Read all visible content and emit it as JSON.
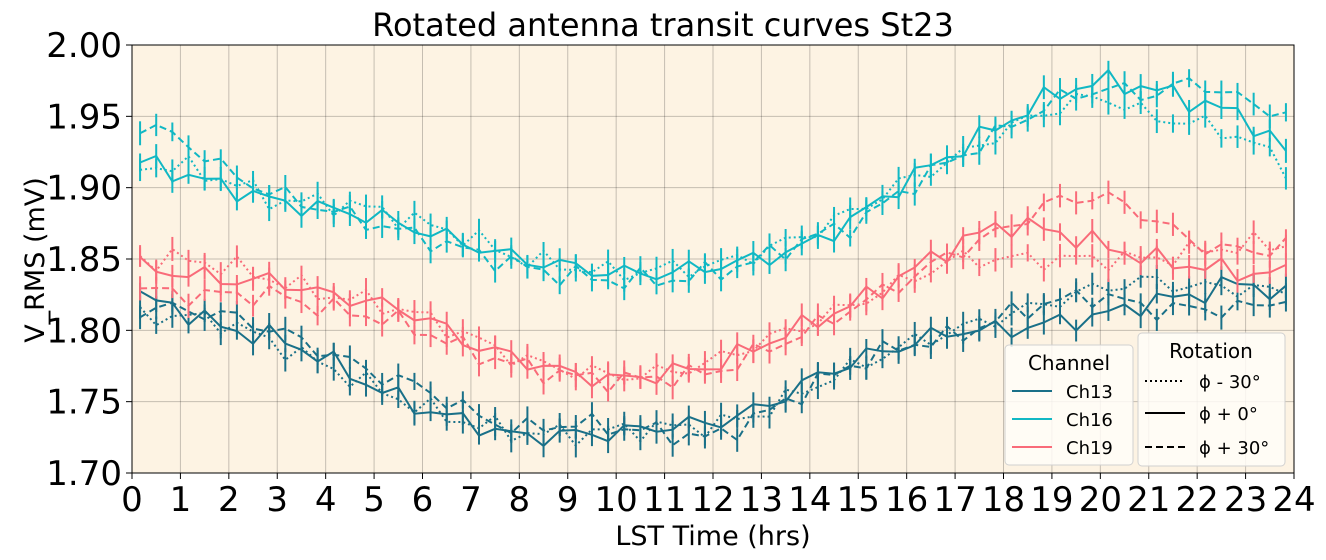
{
  "chart_data": {
    "type": "line",
    "title": "Rotated antenna transit curves St23",
    "xlabel": "LST Time (hrs)",
    "ylabel": "V_RMS (mV)",
    "xlim": [
      0,
      24
    ],
    "ylim": [
      1.7,
      2.0
    ],
    "x_ticks": [
      "0",
      "1",
      "2",
      "3",
      "4",
      "5",
      "6",
      "7",
      "8",
      "9",
      "10",
      "11",
      "12",
      "13",
      "14",
      "15",
      "16",
      "17",
      "18",
      "19",
      "20",
      "21",
      "22",
      "23",
      "24"
    ],
    "y_ticks": [
      "1.70",
      "1.75",
      "1.80",
      "1.85",
      "1.90",
      "1.95",
      "2.00"
    ],
    "grid": true,
    "background": "#fdf3e3",
    "error_bars": true,
    "legend_channel": {
      "title": "Channel",
      "placement": "lower-right",
      "entries": [
        {
          "label": "Ch13",
          "color": "#1a7088"
        },
        {
          "label": "Ch16",
          "color": "#11b8c4"
        },
        {
          "label": "Ch19",
          "color": "#f96b79"
        }
      ]
    },
    "legend_rotation": {
      "title": "Rotation",
      "placement": "lower-right",
      "entries": [
        {
          "label": "ϕ - 30°",
          "style": "dotted"
        },
        {
          "label": "ϕ + 0°",
          "style": "solid"
        },
        {
          "label": "ϕ + 30°",
          "style": "dashed"
        }
      ]
    },
    "x_knots": [
      0,
      1,
      2,
      3,
      4,
      5,
      6,
      7,
      8,
      9,
      10,
      11,
      12,
      13,
      14,
      15,
      16,
      17,
      18,
      19,
      20,
      21,
      22,
      23,
      24
    ],
    "series": [
      {
        "name": "Ch13",
        "rotation": "ϕ + 0°",
        "color": "#1a7088",
        "style": "solid",
        "y": [
          1.825,
          1.815,
          1.8,
          1.795,
          1.78,
          1.76,
          1.745,
          1.735,
          1.725,
          1.727,
          1.728,
          1.733,
          1.735,
          1.745,
          1.765,
          1.78,
          1.79,
          1.8,
          1.8,
          1.805,
          1.81,
          1.82,
          1.825,
          1.835,
          1.82
        ]
      },
      {
        "name": "Ch13",
        "rotation": "ϕ - 30°",
        "color": "#1a7088",
        "style": "dotted",
        "y": [
          1.81,
          1.81,
          1.805,
          1.79,
          1.775,
          1.76,
          1.745,
          1.735,
          1.728,
          1.727,
          1.73,
          1.732,
          1.733,
          1.742,
          1.76,
          1.775,
          1.79,
          1.8,
          1.81,
          1.82,
          1.83,
          1.835,
          1.83,
          1.83,
          1.825
        ]
      },
      {
        "name": "Ch13",
        "rotation": "ϕ + 30°",
        "color": "#1a7088",
        "style": "dashed",
        "y": [
          1.815,
          1.815,
          1.81,
          1.8,
          1.785,
          1.77,
          1.76,
          1.742,
          1.73,
          1.735,
          1.732,
          1.728,
          1.724,
          1.74,
          1.76,
          1.778,
          1.79,
          1.795,
          1.81,
          1.82,
          1.825,
          1.815,
          1.815,
          1.815,
          1.825
        ]
      },
      {
        "name": "Ch16",
        "rotation": "ϕ + 0°",
        "color": "#11b8c4",
        "style": "solid",
        "y": [
          1.92,
          1.91,
          1.9,
          1.89,
          1.885,
          1.88,
          1.87,
          1.86,
          1.85,
          1.845,
          1.84,
          1.84,
          1.845,
          1.85,
          1.86,
          1.88,
          1.905,
          1.925,
          1.945,
          1.965,
          1.975,
          1.97,
          1.96,
          1.95,
          1.92
        ]
      },
      {
        "name": "Ch16",
        "rotation": "ϕ - 30°",
        "color": "#11b8c4",
        "style": "dotted",
        "y": [
          1.915,
          1.915,
          1.905,
          1.89,
          1.89,
          1.885,
          1.875,
          1.865,
          1.85,
          1.845,
          1.84,
          1.843,
          1.845,
          1.855,
          1.868,
          1.885,
          1.905,
          1.92,
          1.94,
          1.955,
          1.965,
          1.95,
          1.945,
          1.935,
          1.91
        ]
      },
      {
        "name": "Ch16",
        "rotation": "ϕ + 30°",
        "color": "#11b8c4",
        "style": "dashed",
        "y": [
          1.945,
          1.935,
          1.91,
          1.895,
          1.885,
          1.875,
          1.865,
          1.855,
          1.845,
          1.838,
          1.835,
          1.835,
          1.84,
          1.85,
          1.865,
          1.875,
          1.9,
          1.92,
          1.94,
          1.96,
          1.97,
          1.965,
          1.975,
          1.96,
          1.95
        ]
      },
      {
        "name": "Ch19",
        "rotation": "ϕ + 0°",
        "color": "#f96b79",
        "style": "solid",
        "y": [
          1.845,
          1.84,
          1.835,
          1.835,
          1.825,
          1.82,
          1.81,
          1.79,
          1.78,
          1.77,
          1.765,
          1.77,
          1.775,
          1.79,
          1.805,
          1.82,
          1.84,
          1.86,
          1.875,
          1.87,
          1.86,
          1.85,
          1.845,
          1.84,
          1.84
        ]
      },
      {
        "name": "Ch19",
        "rotation": "ϕ - 30°",
        "color": "#f96b79",
        "style": "dotted",
        "y": [
          1.85,
          1.85,
          1.845,
          1.835,
          1.825,
          1.82,
          1.81,
          1.795,
          1.78,
          1.772,
          1.768,
          1.77,
          1.778,
          1.792,
          1.805,
          1.82,
          1.835,
          1.85,
          1.85,
          1.85,
          1.85,
          1.85,
          1.855,
          1.86,
          1.86
        ]
      },
      {
        "name": "Ch19",
        "rotation": "ϕ + 30°",
        "color": "#f96b79",
        "style": "dashed",
        "y": [
          1.83,
          1.825,
          1.825,
          1.825,
          1.815,
          1.81,
          1.8,
          1.785,
          1.775,
          1.768,
          1.765,
          1.767,
          1.77,
          1.785,
          1.8,
          1.818,
          1.835,
          1.855,
          1.87,
          1.89,
          1.895,
          1.88,
          1.86,
          1.855,
          1.86
        ]
      }
    ]
  }
}
